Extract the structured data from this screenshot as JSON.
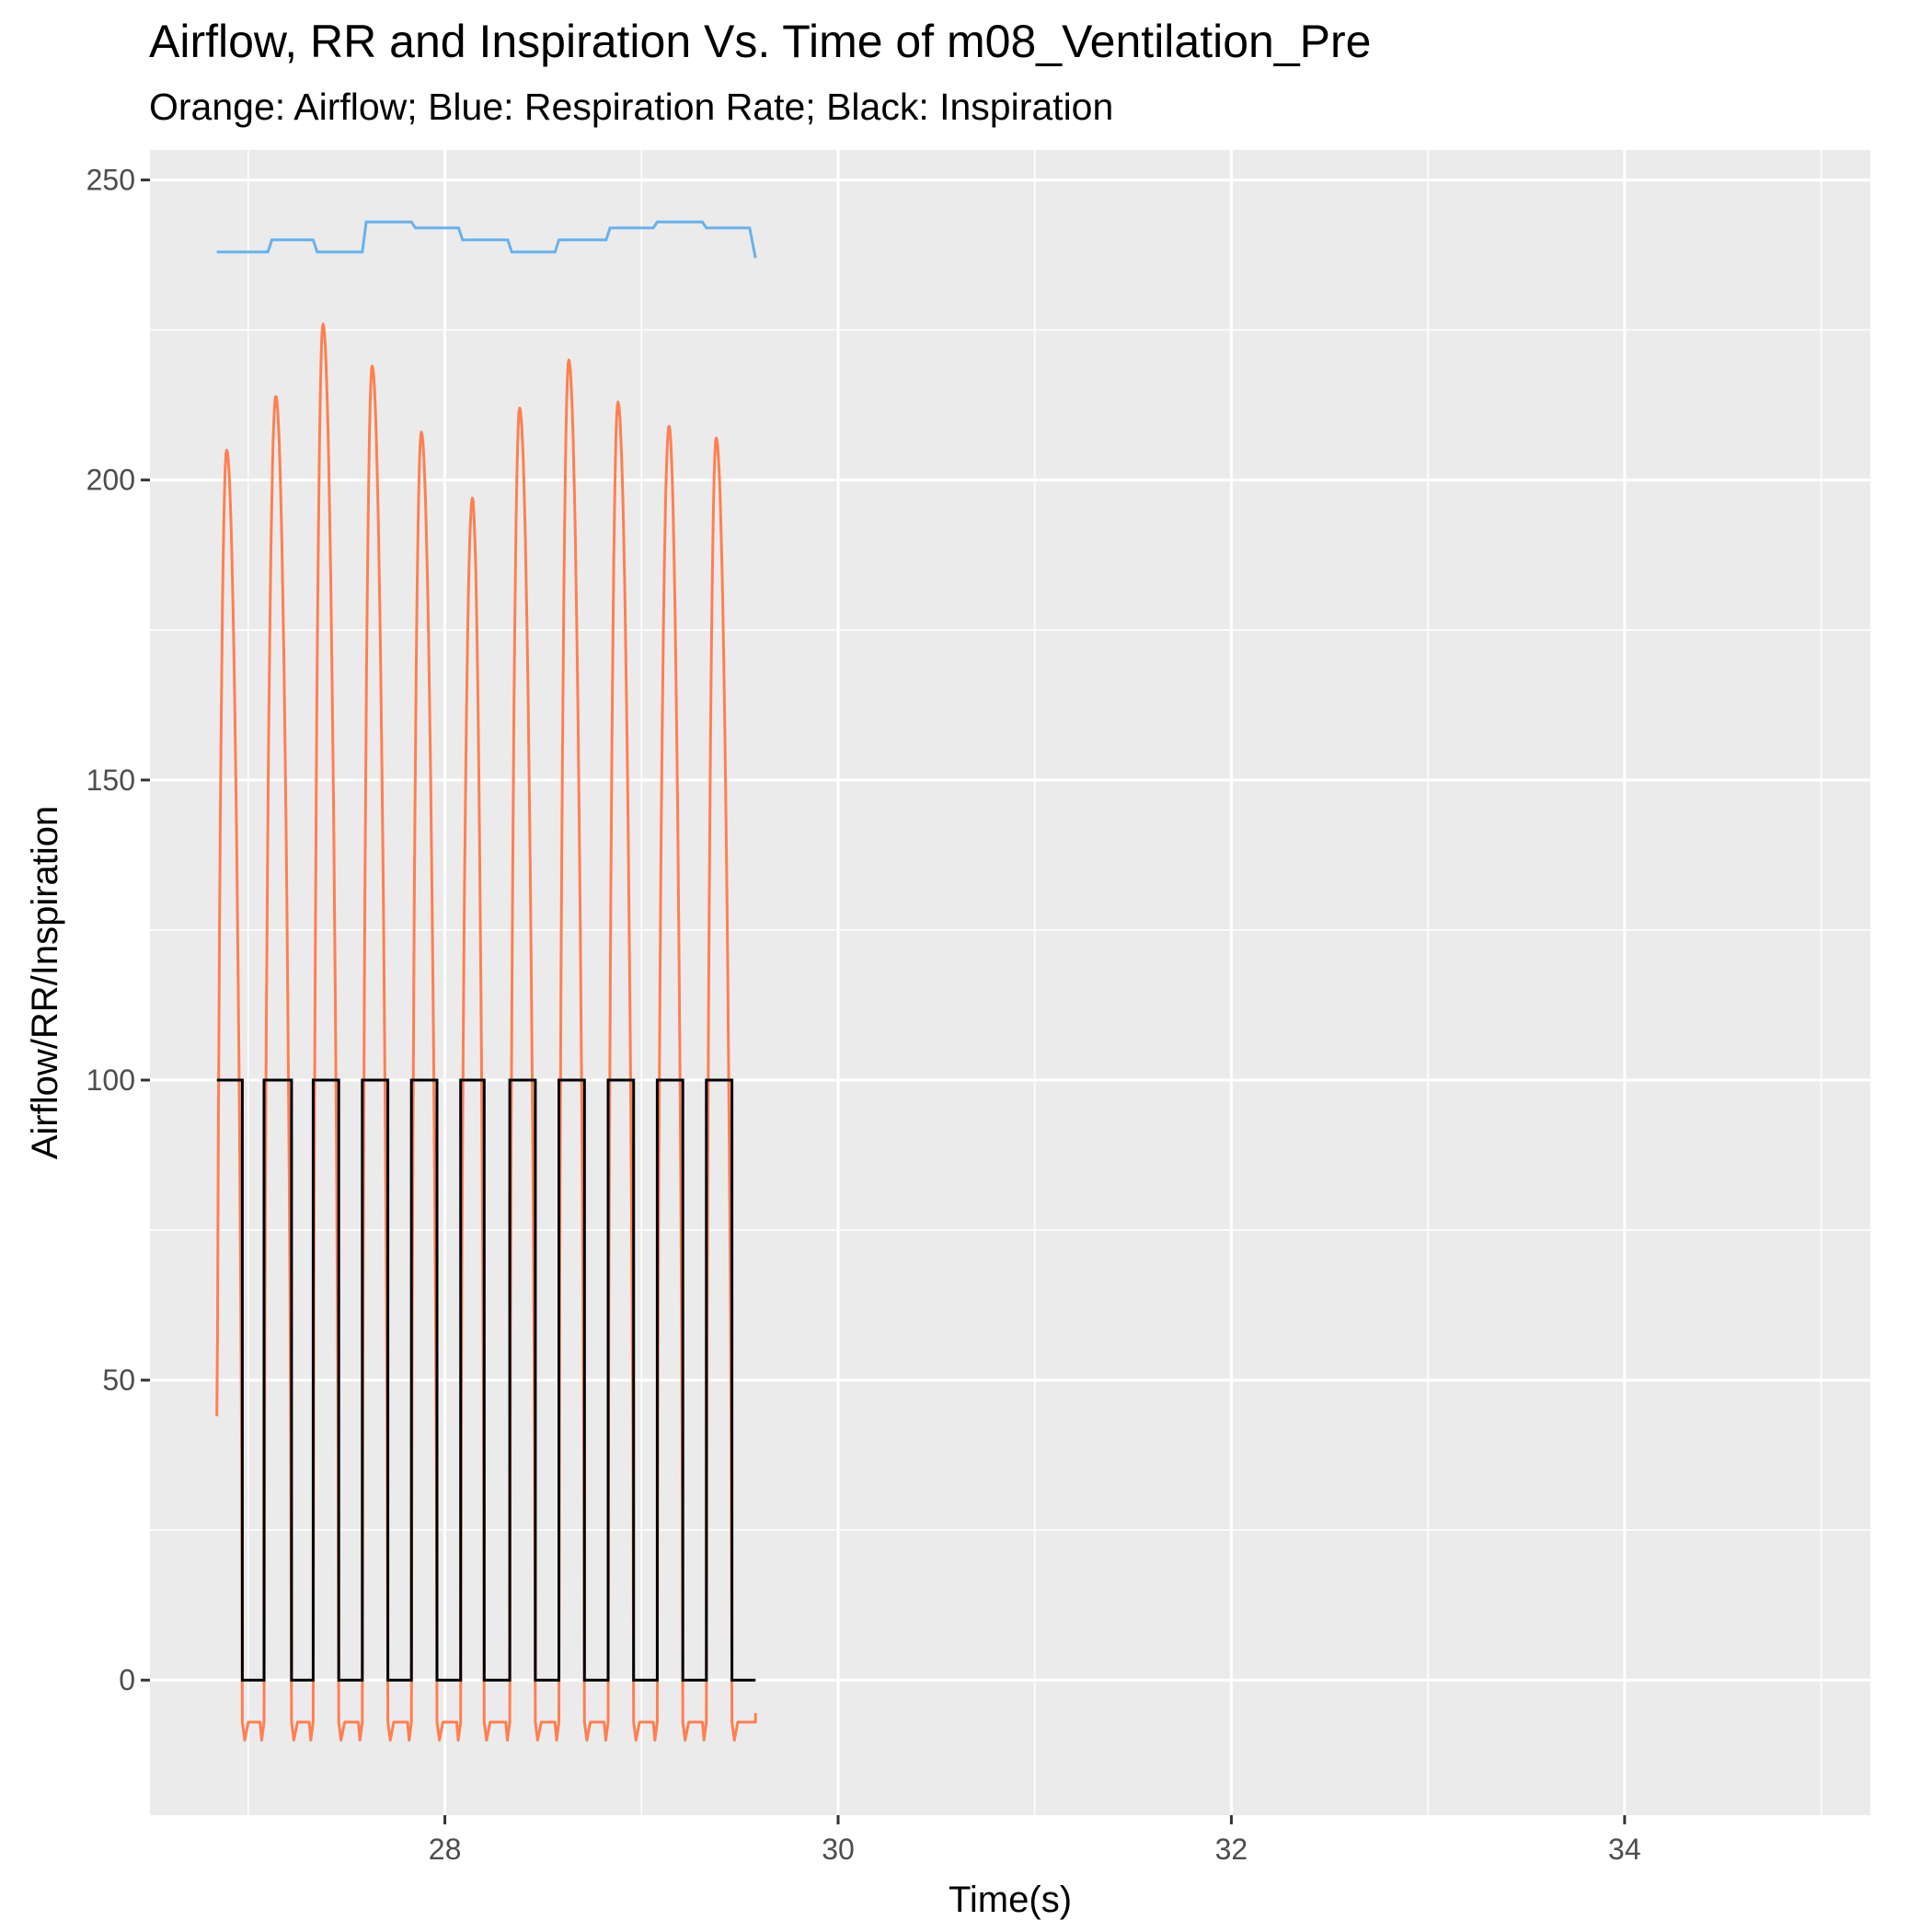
{
  "chart_data": {
    "type": "line",
    "title": "Airflow, RR and Inspiration Vs. Time  of  m08_Ventilation_Pre",
    "subtitle": "Orange: Airflow; Blue: Respiration Rate; Black: Inspiration",
    "xlabel": "Time(s)",
    "ylabel": "Airflow/RR/Inspiration",
    "xlim": [
      26.5,
      35.25
    ],
    "ylim": [
      -22.5,
      255
    ],
    "xticks": [
      28,
      30,
      32,
      34
    ],
    "yticks": [
      0,
      50,
      100,
      150,
      200,
      250
    ],
    "grid": true,
    "legend": "none",
    "colors": {
      "panel": "#ebebeb",
      "grid": "#ffffff",
      "airflow": "#ff7f50",
      "respiration_rate": "#66b2ee",
      "inspiration": "#000000",
      "tick": "#333333"
    },
    "series": [
      {
        "key": "airflow",
        "color": "#ff7f50",
        "breaths": [
          {
            "start": 26.84,
            "end": 26.97,
            "peak": 205,
            "peak_t": 26.89
          },
          {
            "start": 27.08,
            "end": 27.22,
            "peak": 214,
            "peak_t": 27.14
          },
          {
            "start": 27.33,
            "end": 27.46,
            "peak": 226,
            "peak_t": 27.38
          },
          {
            "start": 27.58,
            "end": 27.71,
            "peak": 219,
            "peak_t": 27.63
          },
          {
            "start": 27.83,
            "end": 27.96,
            "peak": 208,
            "peak_t": 27.88
          },
          {
            "start": 28.08,
            "end": 28.2,
            "peak": 197,
            "peak_t": 28.14
          },
          {
            "start": 28.33,
            "end": 28.46,
            "peak": 212,
            "peak_t": 28.38
          },
          {
            "start": 28.58,
            "end": 28.71,
            "peak": 220,
            "peak_t": 28.63
          },
          {
            "start": 28.83,
            "end": 28.96,
            "peak": 213,
            "peak_t": 28.88
          },
          {
            "start": 29.08,
            "end": 29.21,
            "peak": 209,
            "peak_t": 29.14
          },
          {
            "start": 29.33,
            "end": 29.46,
            "peak": 207,
            "peak_t": 29.38
          }
        ],
        "start_value": 44,
        "baseline": -7,
        "trough": -10,
        "end_t": 29.58,
        "end_value": -5.5
      },
      {
        "key": "respiration_rate",
        "color": "#66b2ee",
        "x": [
          26.84,
          27.1,
          27.12,
          27.33,
          27.35,
          27.58,
          27.6,
          27.83,
          27.85,
          28.07,
          28.09,
          28.32,
          28.34,
          28.56,
          28.58,
          28.82,
          28.84,
          29.06,
          29.08,
          29.31,
          29.33,
          29.55,
          29.58
        ],
        "values": [
          238,
          238,
          240,
          240,
          238,
          238,
          243,
          243,
          242,
          242,
          240,
          240,
          238,
          238,
          240,
          240,
          242,
          242,
          243,
          243,
          242,
          242,
          237
        ]
      },
      {
        "key": "inspiration",
        "color": "#000000",
        "high": 100,
        "low": 0,
        "intervals": [
          [
            26.84,
            26.97
          ],
          [
            27.08,
            27.22
          ],
          [
            27.33,
            27.46
          ],
          [
            27.58,
            27.71
          ],
          [
            27.83,
            27.96
          ],
          [
            28.08,
            28.2
          ],
          [
            28.33,
            28.46
          ],
          [
            28.58,
            28.71
          ],
          [
            28.83,
            28.96
          ],
          [
            29.08,
            29.21
          ],
          [
            29.33,
            29.46
          ]
        ],
        "end_t": 29.58
      }
    ]
  }
}
